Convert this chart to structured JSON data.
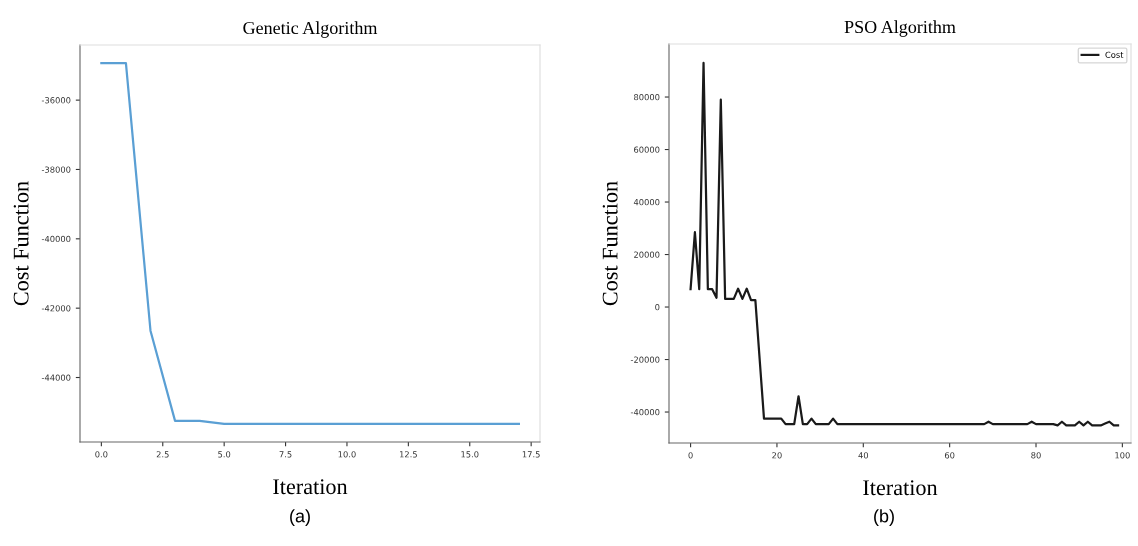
{
  "chart_data": [
    {
      "type": "line",
      "title": "Genetic Algorithm",
      "xlabel": "Iteration",
      "ylabel": "Cost Function",
      "annotations": [
        "(a)"
      ],
      "x": [
        0,
        1,
        2,
        3,
        4,
        5,
        6,
        7,
        8,
        9,
        10,
        11,
        12,
        13,
        14,
        15,
        16,
        17
      ],
      "series": [
        {
          "color": "#5a9fd4",
          "values": [
            -34930,
            -34930,
            -42650,
            -45250,
            -45250,
            -45340,
            -45340,
            -45340,
            -45340,
            -45340,
            -45340,
            -45340,
            -45340,
            -45340,
            -45340,
            -45340,
            -45340,
            -45340
          ]
        }
      ],
      "xlim": [
        -0.87,
        17.86
      ],
      "ylim": [
        -45860,
        -34410
      ],
      "xticks": [
        {
          "value": 0,
          "label": "0.0"
        },
        {
          "value": 2.5,
          "label": "2.5"
        },
        {
          "value": 5,
          "label": "5.0"
        },
        {
          "value": 7.5,
          "label": "7.5"
        },
        {
          "value": 10,
          "label": "10.0"
        },
        {
          "value": 12.5,
          "label": "12.5"
        },
        {
          "value": 15,
          "label": "15.0"
        },
        {
          "value": 17.5,
          "label": "17.5"
        }
      ],
      "yticks": [
        -44000,
        -42000,
        -40000,
        -38000,
        -36000
      ],
      "grid": false,
      "legend": false
    },
    {
      "type": "line",
      "title": "PSO Algorithm",
      "xlabel": "Iteration",
      "ylabel": "Cost Function",
      "annotations": [
        "(b)"
      ],
      "x": [
        0,
        1,
        2,
        3,
        4,
        5,
        6,
        7,
        8,
        9,
        10,
        11,
        12,
        13,
        14,
        15,
        16,
        17,
        18,
        19,
        20,
        21,
        22,
        23,
        24,
        25,
        26,
        27,
        28,
        29,
        30,
        31,
        32,
        33,
        34,
        35,
        36,
        37,
        38,
        39,
        40,
        41,
        42,
        43,
        44,
        45,
        46,
        47,
        48,
        49,
        50,
        51,
        52,
        53,
        54,
        55,
        56,
        57,
        58,
        59,
        60,
        61,
        62,
        63,
        64,
        65,
        66,
        67,
        68,
        69,
        70,
        71,
        72,
        73,
        74,
        75,
        76,
        77,
        78,
        79,
        80,
        81,
        82,
        83,
        84,
        85,
        86,
        87,
        88,
        89,
        90,
        91,
        92,
        93,
        94,
        95,
        96,
        97,
        98,
        99
      ],
      "series": [
        {
          "name": "Cost",
          "color": "#1a1a1a",
          "values": [
            6800,
            28500,
            6800,
            93000,
            6800,
            6800,
            3500,
            79000,
            3100,
            3100,
            3100,
            7000,
            3100,
            7000,
            2600,
            2600,
            -20000,
            -42500,
            -42500,
            -42500,
            -42500,
            -42500,
            -44600,
            -44600,
            -44600,
            -34000,
            -44600,
            -44600,
            -42500,
            -44600,
            -44600,
            -44600,
            -44600,
            -42500,
            -44600,
            -44600,
            -44600,
            -44600,
            -44600,
            -44600,
            -44600,
            -44600,
            -44600,
            -44600,
            -44600,
            -44600,
            -44600,
            -44600,
            -44600,
            -44600,
            -44600,
            -44600,
            -44600,
            -44600,
            -44600,
            -44600,
            -44600,
            -44600,
            -44600,
            -44600,
            -44600,
            -44600,
            -44600,
            -44600,
            -44600,
            -44600,
            -44600,
            -44600,
            -44600,
            -43700,
            -44600,
            -44600,
            -44600,
            -44600,
            -44600,
            -44600,
            -44600,
            -44600,
            -44600,
            -43700,
            -44600,
            -44600,
            -44600,
            -44600,
            -44600,
            -45100,
            -43700,
            -45100,
            -45100,
            -45100,
            -43700,
            -45100,
            -43700,
            -45100,
            -45100,
            -45100,
            -44400,
            -43700,
            -45100,
            -45100
          ]
        }
      ],
      "xlim": [
        -5,
        102
      ],
      "ylim": [
        -51800,
        100200
      ],
      "xticks": [
        0,
        20,
        40,
        60,
        80,
        100
      ],
      "yticks": [
        -40000,
        -20000,
        0,
        20000,
        40000,
        60000,
        80000
      ],
      "grid": false,
      "legend": "top right"
    }
  ]
}
